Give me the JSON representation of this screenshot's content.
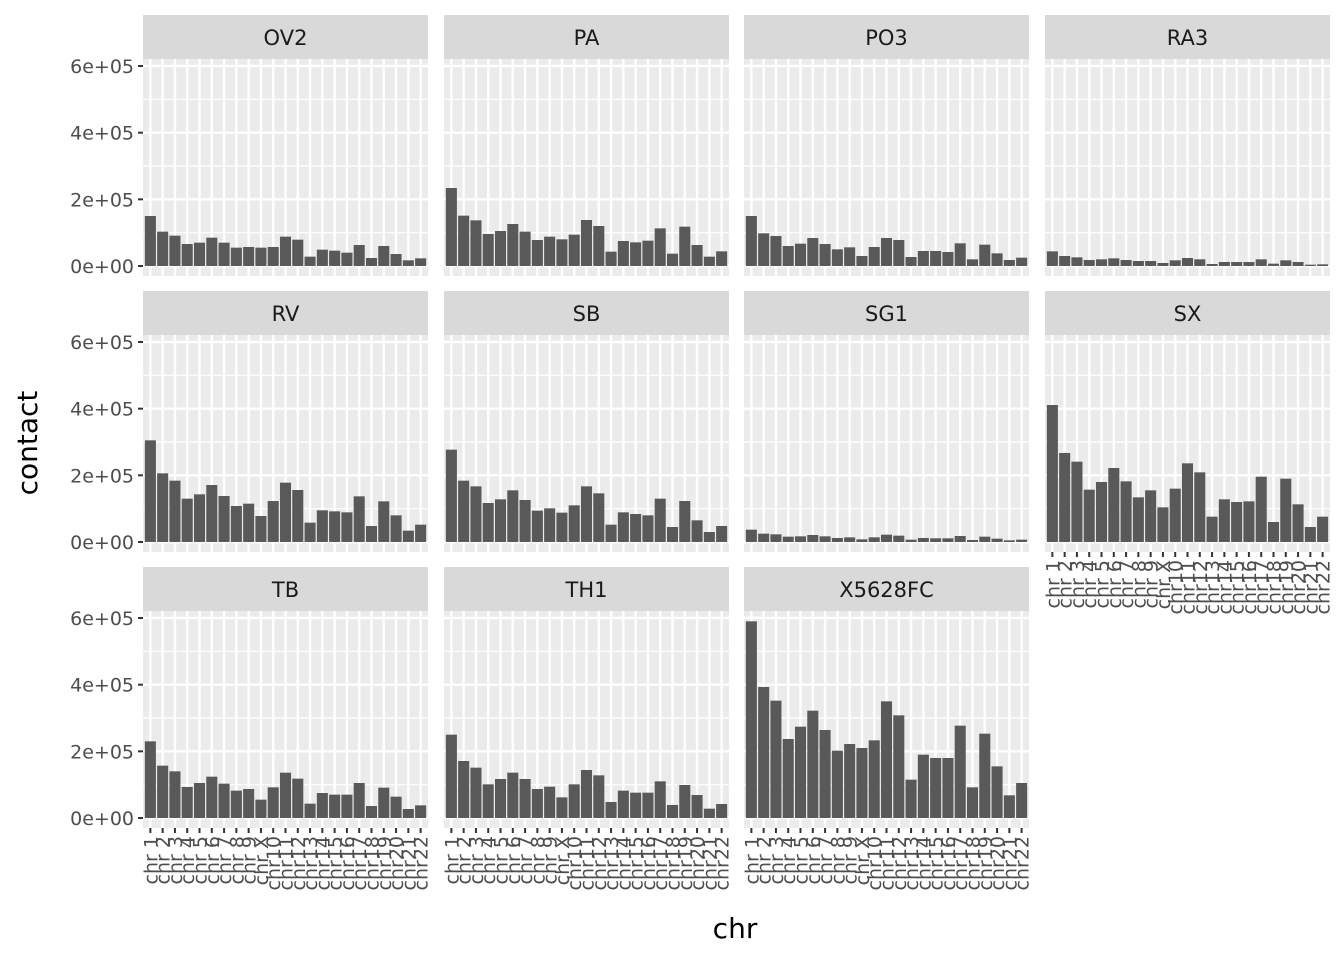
{
  "chart_data": {
    "type": "bar",
    "xlabel": "chr",
    "ylabel": "contact",
    "ylim": [
      0,
      600000
    ],
    "y_ticks": [
      {
        "value": 0,
        "label": "0e+00"
      },
      {
        "value": 200000,
        "label": "2e+05"
      },
      {
        "value": 400000,
        "label": "4e+05"
      },
      {
        "value": 600000,
        "label": "6e+05"
      }
    ],
    "categories": [
      "chr1",
      "chr2",
      "chr3",
      "chr4",
      "chr5",
      "chr6",
      "chr7",
      "chr8",
      "chr9",
      "chrX",
      "chr10",
      "chr11",
      "chr12",
      "chr13",
      "chr14",
      "chr15",
      "chr16",
      "chr17",
      "chr18",
      "chr19",
      "chr20",
      "chr21",
      "chr22"
    ],
    "category_labels": [
      "chr 1",
      "chr 2",
      "chr 3",
      "chr 4",
      "chr 5",
      "chr 6",
      "chr 7",
      "chr 8",
      "chr 9",
      "chr X",
      "chr10",
      "chr11",
      "chr12",
      "chr13",
      "chr14",
      "chr15",
      "chr16",
      "chr17",
      "chr18",
      "chr19",
      "chr20",
      "chr21",
      "chr22"
    ],
    "grid": true,
    "colors": {
      "bar": "#595959",
      "panel": "#ebebeb",
      "grid": "#ffffff",
      "strip": "#d9d9d9"
    },
    "facets": [
      {
        "name": "OV2",
        "values": [
          150000,
          103000,
          91000,
          66000,
          70000,
          85000,
          70000,
          55000,
          57000,
          55000,
          57000,
          88000,
          79000,
          28000,
          49000,
          46000,
          40000,
          63000,
          24000,
          60000,
          36000,
          17000,
          23000
        ]
      },
      {
        "name": "PA",
        "values": [
          234000,
          151000,
          137000,
          96000,
          105000,
          126000,
          103000,
          78000,
          88000,
          80000,
          94000,
          138000,
          120000,
          43000,
          75000,
          71000,
          76000,
          113000,
          37000,
          118000,
          63000,
          28000,
          44000
        ]
      },
      {
        "name": "PO3",
        "values": [
          150000,
          98000,
          90000,
          60000,
          67000,
          84000,
          66000,
          50000,
          56000,
          30000,
          57000,
          84000,
          78000,
          27000,
          45000,
          45000,
          42000,
          68000,
          20000,
          64000,
          38000,
          18000,
          25000
        ]
      },
      {
        "name": "RA3",
        "values": [
          44000,
          30000,
          26000,
          18000,
          20000,
          23000,
          18000,
          15000,
          15000,
          9000,
          17000,
          24000,
          20000,
          6000,
          12000,
          12000,
          12000,
          20000,
          7000,
          17000,
          12000,
          4000,
          5000
        ]
      },
      {
        "name": "RV",
        "values": [
          305000,
          206000,
          184000,
          130000,
          143000,
          171000,
          138000,
          108000,
          115000,
          78000,
          123000,
          178000,
          156000,
          58000,
          95000,
          92000,
          89000,
          137000,
          48000,
          122000,
          80000,
          34000,
          52000
        ]
      },
      {
        "name": "SB",
        "values": [
          277000,
          184000,
          167000,
          117000,
          128000,
          155000,
          126000,
          94000,
          101000,
          88000,
          110000,
          167000,
          146000,
          52000,
          89000,
          84000,
          80000,
          130000,
          45000,
          123000,
          65000,
          30000,
          48000
        ]
      },
      {
        "name": "SG1",
        "values": [
          37000,
          25000,
          23000,
          16000,
          17000,
          21000,
          17000,
          12000,
          14000,
          8000,
          14000,
          22000,
          19000,
          7000,
          12000,
          11000,
          11000,
          18000,
          6000,
          16000,
          10000,
          5000,
          7000
        ]
      },
      {
        "name": "SX",
        "values": [
          411000,
          267000,
          241000,
          157000,
          180000,
          222000,
          182000,
          134000,
          155000,
          104000,
          160000,
          236000,
          209000,
          76000,
          128000,
          120000,
          122000,
          196000,
          60000,
          190000,
          113000,
          45000,
          76000
        ]
      },
      {
        "name": "TB",
        "values": [
          230000,
          157000,
          140000,
          93000,
          105000,
          124000,
          103000,
          82000,
          87000,
          55000,
          92000,
          136000,
          118000,
          43000,
          75000,
          70000,
          70000,
          105000,
          36000,
          91000,
          64000,
          27000,
          38000
        ]
      },
      {
        "name": "TH1",
        "values": [
          250000,
          171000,
          151000,
          101000,
          117000,
          136000,
          117000,
          87000,
          94000,
          62000,
          101000,
          144000,
          128000,
          48000,
          82000,
          76000,
          76000,
          110000,
          39000,
          99000,
          69000,
          28000,
          42000
        ]
      },
      {
        "name": "X5628FC",
        "values": [
          590000,
          393000,
          352000,
          237000,
          274000,
          322000,
          264000,
          202000,
          222000,
          210000,
          233000,
          350000,
          308000,
          115000,
          190000,
          180000,
          180000,
          277000,
          92000,
          253000,
          155000,
          68000,
          105000
        ]
      }
    ]
  }
}
